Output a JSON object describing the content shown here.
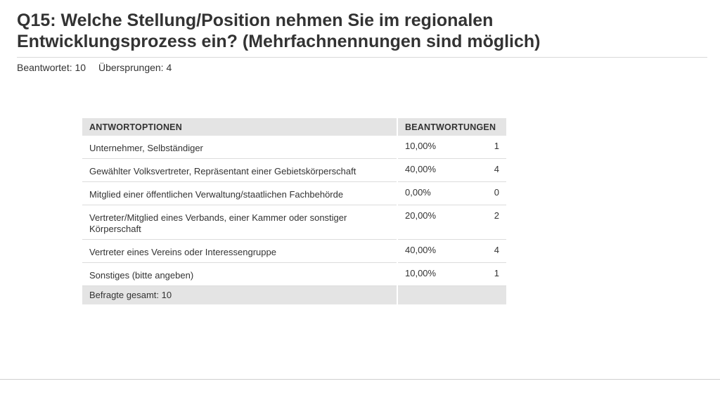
{
  "title": {
    "line1": "Q15: Welche Stellung/Position nehmen Sie im regionalen",
    "line2": "Entwicklungsprozess ein? (Mehrfachnennungen sind möglich)"
  },
  "meta": {
    "answered": "Beantwortet: 10",
    "skipped": "Übersprungen: 4"
  },
  "table": {
    "headers": {
      "options": "ANTWORTOPTIONEN",
      "responses": "BEANTWORTUNGEN"
    },
    "rows": [
      {
        "option": "Unternehmer, Selbständiger",
        "percent": "10,00%",
        "count": "1"
      },
      {
        "option": "Gewählter Volksvertreter, Repräsentant einer Gebietskörperschaft",
        "percent": "40,00%",
        "count": "4"
      },
      {
        "option": "Mitglied einer öffentlichen Verwaltung/staatlichen Fachbehörde",
        "percent": "0,00%",
        "count": "0"
      },
      {
        "option": "Vertreter/Mitglied eines Verbands, einer Kammer oder sonstiger Körperschaft",
        "percent": "20,00%",
        "count": "2"
      },
      {
        "option": "Vertreter eines Vereins oder Interessengruppe",
        "percent": "40,00%",
        "count": "4"
      },
      {
        "option": "Sonstiges (bitte angeben)",
        "percent": "10,00%",
        "count": "1"
      }
    ],
    "total": "Befragte gesamt: 10"
  }
}
